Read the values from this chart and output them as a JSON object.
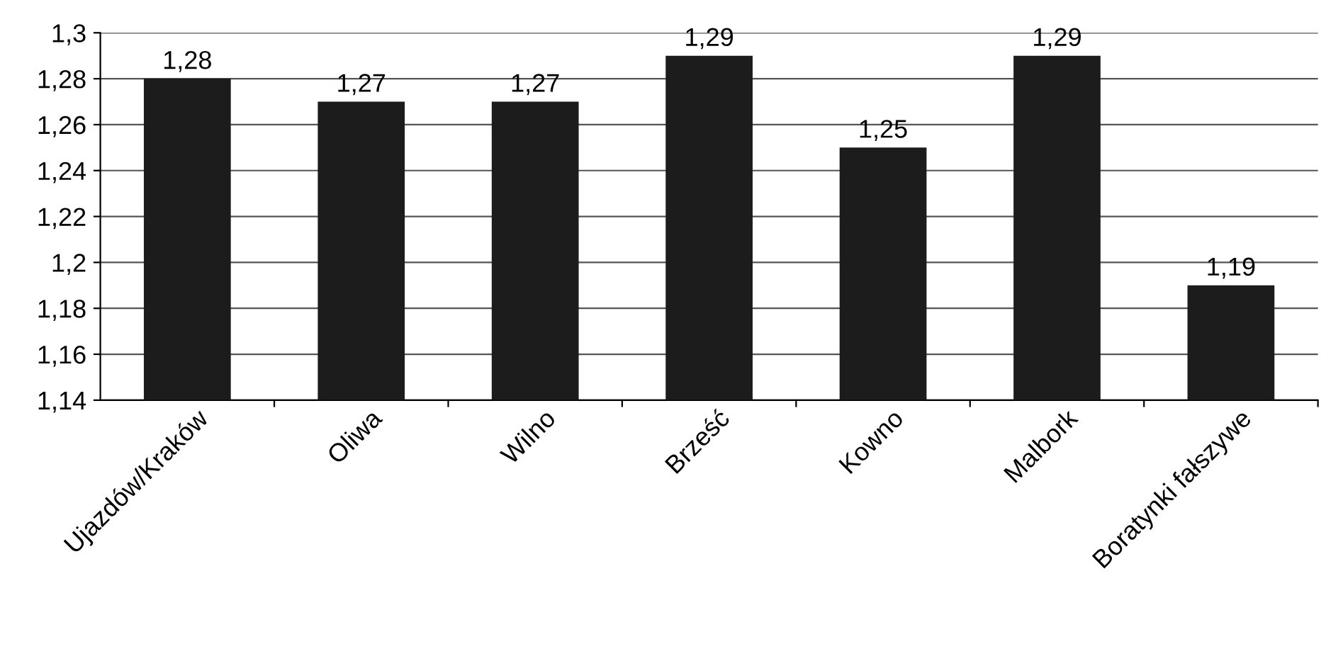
{
  "chart_data": {
    "type": "bar",
    "categories": [
      "Ujazdów/Kraków",
      "Oliwa",
      "Wilno",
      "Brześć",
      "Kowno",
      "Malbork",
      "Boratynki fałszywe"
    ],
    "values": [
      1.28,
      1.27,
      1.27,
      1.29,
      1.25,
      1.29,
      1.19
    ],
    "value_labels": [
      "1,28",
      "1,27",
      "1,27",
      "1,29",
      "1,25",
      "1,29",
      "1,19"
    ],
    "color": "#1c1c1c",
    "ylim": [
      1.14,
      1.3
    ],
    "yticks": [
      {
        "value": 1.14,
        "label": "1,14"
      },
      {
        "value": 1.16,
        "label": "1,16"
      },
      {
        "value": 1.18,
        "label": "1,18"
      },
      {
        "value": 1.2,
        "label": "1,2"
      },
      {
        "value": 1.22,
        "label": "1,22"
      },
      {
        "value": 1.24,
        "label": "1,24"
      },
      {
        "value": 1.26,
        "label": "1,26"
      },
      {
        "value": 1.28,
        "label": "1,28"
      },
      {
        "value": 1.3,
        "label": "1,3"
      }
    ],
    "grid": "y"
  }
}
